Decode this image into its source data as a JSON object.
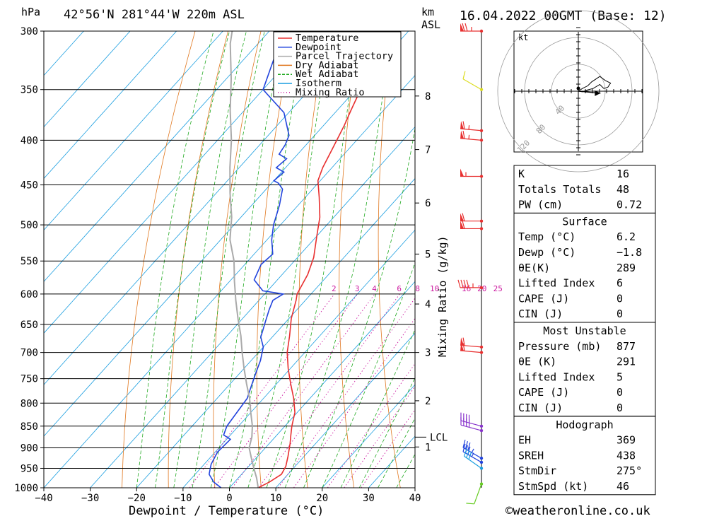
{
  "header": {
    "pressure_unit": "hPa",
    "location": "42°56'N  281°44'W  220m  ASL",
    "height_unit_km": "km",
    "height_unit_asl": "ASL",
    "datetime": "16.04.2022  00GMT  (Base: 12)"
  },
  "legend": [
    {
      "label": "Temperature",
      "color": "#e83030",
      "style": "solid"
    },
    {
      "label": "Dewpoint",
      "color": "#2244dd",
      "style": "solid"
    },
    {
      "label": "Parcel Trajectory",
      "color": "#aaaaaa",
      "style": "solid"
    },
    {
      "label": "Dry Adiabat",
      "color": "#e07820",
      "style": "solid"
    },
    {
      "label": "Wet Adiabat",
      "color": "#22aa22",
      "style": "dashed"
    },
    {
      "label": "Isotherm",
      "color": "#1a9ee0",
      "style": "solid"
    },
    {
      "label": "Mixing Ratio",
      "color": "#cc1aa0",
      "style": "dotted"
    }
  ],
  "chart_data": {
    "type": "line",
    "xlabel": "Dewpoint / Temperature (°C)",
    "x_ticks": [
      "−40",
      "−30",
      "−20",
      "−10",
      "0",
      "10",
      "20",
      "30",
      "40"
    ],
    "x_tick_values": [
      -40,
      -30,
      -20,
      -10,
      0,
      10,
      20,
      30,
      40
    ],
    "pressure_levels": [
      "300",
      "350",
      "400",
      "450",
      "500",
      "550",
      "600",
      "650",
      "700",
      "750",
      "800",
      "850",
      "900",
      "950",
      "1000"
    ],
    "pressure_values": [
      300,
      350,
      400,
      450,
      500,
      550,
      600,
      650,
      700,
      750,
      800,
      850,
      900,
      950,
      1000
    ],
    "y_scale": "log-pressure",
    "km_ticks": [
      {
        "label": "8",
        "p": 356
      },
      {
        "label": "7",
        "p": 410
      },
      {
        "label": "6",
        "p": 472
      },
      {
        "label": "5",
        "p": 540
      },
      {
        "label": "4",
        "p": 616
      },
      {
        "label": "3",
        "p": 700
      },
      {
        "label": "2",
        "p": 795
      },
      {
        "label": "1",
        "p": 898
      }
    ],
    "lcl": {
      "label": "LCL",
      "p": 875
    },
    "mixing_ratio_axis_label": "Mixing Ratio (g/kg)",
    "mixing_ratio_labels": [
      "2",
      "3",
      "4",
      "6",
      "8",
      "10",
      "16",
      "20",
      "25"
    ],
    "mixing_ratio_values": [
      2,
      3,
      4,
      6,
      8,
      10,
      16,
      20,
      25
    ],
    "series": [
      {
        "name": "Temperature",
        "color": "#e83030",
        "points": [
          [
            6.2,
            1000
          ],
          [
            7.5,
            985
          ],
          [
            8.6,
            965
          ],
          [
            8.0,
            945
          ],
          [
            6.5,
            920
          ],
          [
            4.5,
            890
          ],
          [
            3.0,
            870
          ],
          [
            1.5,
            850
          ],
          [
            -0.5,
            820
          ],
          [
            -3.5,
            790
          ],
          [
            -7.0,
            760
          ],
          [
            -10.5,
            730
          ],
          [
            -13.8,
            700
          ],
          [
            -16.5,
            670
          ],
          [
            -19.5,
            640
          ],
          [
            -22.0,
            610
          ],
          [
            -23.0,
            600
          ],
          [
            -24.5,
            570
          ],
          [
            -26.5,
            545
          ],
          [
            -30.0,
            515
          ],
          [
            -33.0,
            490
          ],
          [
            -37.0,
            465
          ],
          [
            -40.5,
            445
          ],
          [
            -42.0,
            430
          ],
          [
            -43.5,
            410
          ],
          [
            -45.5,
            385
          ],
          [
            -47.0,
            370
          ],
          [
            -49.5,
            345
          ],
          [
            -51.5,
            322
          ],
          [
            -52.5,
            300
          ]
        ]
      },
      {
        "name": "Dewpoint",
        "color": "#2244dd",
        "points": [
          [
            -1.8,
            1000
          ],
          [
            -4.5,
            985
          ],
          [
            -7.0,
            965
          ],
          [
            -8.5,
            940
          ],
          [
            -9.5,
            910
          ],
          [
            -9.2,
            880
          ],
          [
            -11.5,
            870
          ],
          [
            -12.5,
            850
          ],
          [
            -13.0,
            820
          ],
          [
            -13.5,
            790
          ],
          [
            -15.0,
            765
          ],
          [
            -16.5,
            740
          ],
          [
            -18.0,
            715
          ],
          [
            -20.0,
            690
          ],
          [
            -22.5,
            672
          ],
          [
            -23.0,
            665
          ],
          [
            -24.5,
            645
          ],
          [
            -26.0,
            625
          ],
          [
            -27.0,
            610
          ],
          [
            -26.0,
            600
          ],
          [
            -31.0,
            595
          ],
          [
            -35.0,
            578
          ],
          [
            -36.5,
            555
          ],
          [
            -36.0,
            540
          ],
          [
            -39.0,
            520
          ],
          [
            -41.5,
            500
          ],
          [
            -44.0,
            475
          ],
          [
            -46.5,
            455
          ],
          [
            -48.5,
            448
          ],
          [
            -50.0,
            445
          ],
          [
            -49.5,
            435
          ],
          [
            -52.0,
            430
          ],
          [
            -51.5,
            420
          ],
          [
            -54.0,
            415
          ],
          [
            -54.5,
            405
          ],
          [
            -55.5,
            395
          ],
          [
            -61.0,
            372
          ],
          [
            -70.0,
            350
          ],
          [
            -74.0,
            320
          ],
          [
            -75.0,
            300
          ]
        ]
      },
      {
        "name": "Parcel Trajectory",
        "color": "#aaaaaa",
        "points": [
          [
            6.2,
            1000
          ],
          [
            4.0,
            975
          ],
          [
            1.5,
            950
          ],
          [
            -1.0,
            925
          ],
          [
            -3.5,
            900
          ],
          [
            -5.0,
            875
          ],
          [
            -7.0,
            850
          ],
          [
            -10.0,
            820
          ],
          [
            -13.0,
            790
          ],
          [
            -16.5,
            760
          ],
          [
            -20.0,
            730
          ],
          [
            -23.5,
            700
          ],
          [
            -27.0,
            670
          ],
          [
            -31.0,
            640
          ],
          [
            -35.0,
            610
          ],
          [
            -39.0,
            580
          ],
          [
            -43.0,
            550
          ],
          [
            -48.0,
            520
          ],
          [
            -52.0,
            490
          ],
          [
            -57.0,
            460
          ],
          [
            -62.0,
            430
          ],
          [
            -67.0,
            400
          ],
          [
            -73.0,
            370
          ],
          [
            -79.0,
            340
          ],
          [
            -86.0,
            310
          ],
          [
            -88.0,
            300
          ]
        ]
      }
    ],
    "grid": true
  },
  "wind_barbs": [
    {
      "p": 300,
      "dir": 270,
      "speed": 75,
      "color": "#e83030"
    },
    {
      "p": 350,
      "dir": 300,
      "speed": 10,
      "color": "#dddd22"
    },
    {
      "p": 390,
      "dir": 275,
      "speed": 65,
      "color": "#e83030"
    },
    {
      "p": 400,
      "dir": 275,
      "speed": 65,
      "color": "#e83030"
    },
    {
      "p": 440,
      "dir": 270,
      "speed": 55,
      "color": "#e83030"
    },
    {
      "p": 495,
      "dir": 270,
      "speed": 60,
      "color": "#e83030"
    },
    {
      "p": 505,
      "dir": 270,
      "speed": 60,
      "color": "#e83030"
    },
    {
      "p": 590,
      "dir": 270,
      "speed": 45,
      "color": "#e83030"
    },
    {
      "p": 690,
      "dir": 275,
      "speed": 60,
      "color": "#e83030"
    },
    {
      "p": 700,
      "dir": 275,
      "speed": 60,
      "color": "#e83030"
    },
    {
      "p": 850,
      "dir": 285,
      "speed": 40,
      "color": "#8833cc"
    },
    {
      "p": 860,
      "dir": 285,
      "speed": 40,
      "color": "#8833cc"
    },
    {
      "p": 925,
      "dir": 300,
      "speed": 35,
      "color": "#2244dd"
    },
    {
      "p": 935,
      "dir": 300,
      "speed": 35,
      "color": "#2244dd"
    },
    {
      "p": 950,
      "dir": 305,
      "speed": 30,
      "color": "#1a9ee0"
    },
    {
      "p": 990,
      "dir": 200,
      "speed": 10,
      "color": "#66cc22"
    }
  ],
  "hodograph": {
    "unit": "kt",
    "ring_labels": [
      "40",
      "80",
      "120"
    ],
    "points": [
      [
        0,
        0
      ],
      [
        6,
        4
      ],
      [
        14,
        8
      ],
      [
        20,
        14
      ],
      [
        26,
        18
      ],
      [
        32,
        22
      ],
      [
        40,
        16
      ],
      [
        48,
        12
      ],
      [
        44,
        6
      ],
      [
        38,
        4
      ],
      [
        32,
        10
      ],
      [
        22,
        4
      ],
      [
        14,
        2
      ],
      [
        6,
        -1
      ],
      [
        0,
        0
      ]
    ],
    "storm_motion_vector": [
      33,
      -3
    ]
  },
  "indices": {
    "top": [
      {
        "label": "K",
        "value": "16"
      },
      {
        "label": "Totals Totals",
        "value": "48"
      },
      {
        "label": "PW (cm)",
        "value": "0.72"
      }
    ],
    "surface": {
      "title": "Surface",
      "rows": [
        {
          "label": "Temp (°C)",
          "value": "6.2"
        },
        {
          "label": "Dewp (°C)",
          "value": "−1.8"
        },
        {
          "label": "θE(K)",
          "value": "289"
        },
        {
          "label": "Lifted Index",
          "value": "6"
        },
        {
          "label": "CAPE (J)",
          "value": "0"
        },
        {
          "label": "CIN (J)",
          "value": "0"
        }
      ]
    },
    "most_unstable": {
      "title": "Most Unstable",
      "rows": [
        {
          "label": "Pressure (mb)",
          "value": "877"
        },
        {
          "label": "θE (K)",
          "value": "291"
        },
        {
          "label": "Lifted Index",
          "value": "5"
        },
        {
          "label": "CAPE (J)",
          "value": "0"
        },
        {
          "label": "CIN (J)",
          "value": "0"
        }
      ]
    },
    "hodograph": {
      "title": "Hodograph",
      "rows": [
        {
          "label": "EH",
          "value": "369"
        },
        {
          "label": "SREH",
          "value": "438"
        },
        {
          "label": "StmDir",
          "value": "275°"
        },
        {
          "label": "StmSpd (kt)",
          "value": "46"
        }
      ]
    }
  },
  "footer": {
    "copyright": "©weatheronline.co.uk"
  },
  "colors": {
    "temperature": "#e83030",
    "dewpoint": "#2244dd",
    "parcel": "#aaaaaa",
    "dry_adiabat": "#e07820",
    "wet_adiabat": "#22aa22",
    "isotherm": "#1a9ee0",
    "mixing_ratio": "#cc1aa0"
  }
}
